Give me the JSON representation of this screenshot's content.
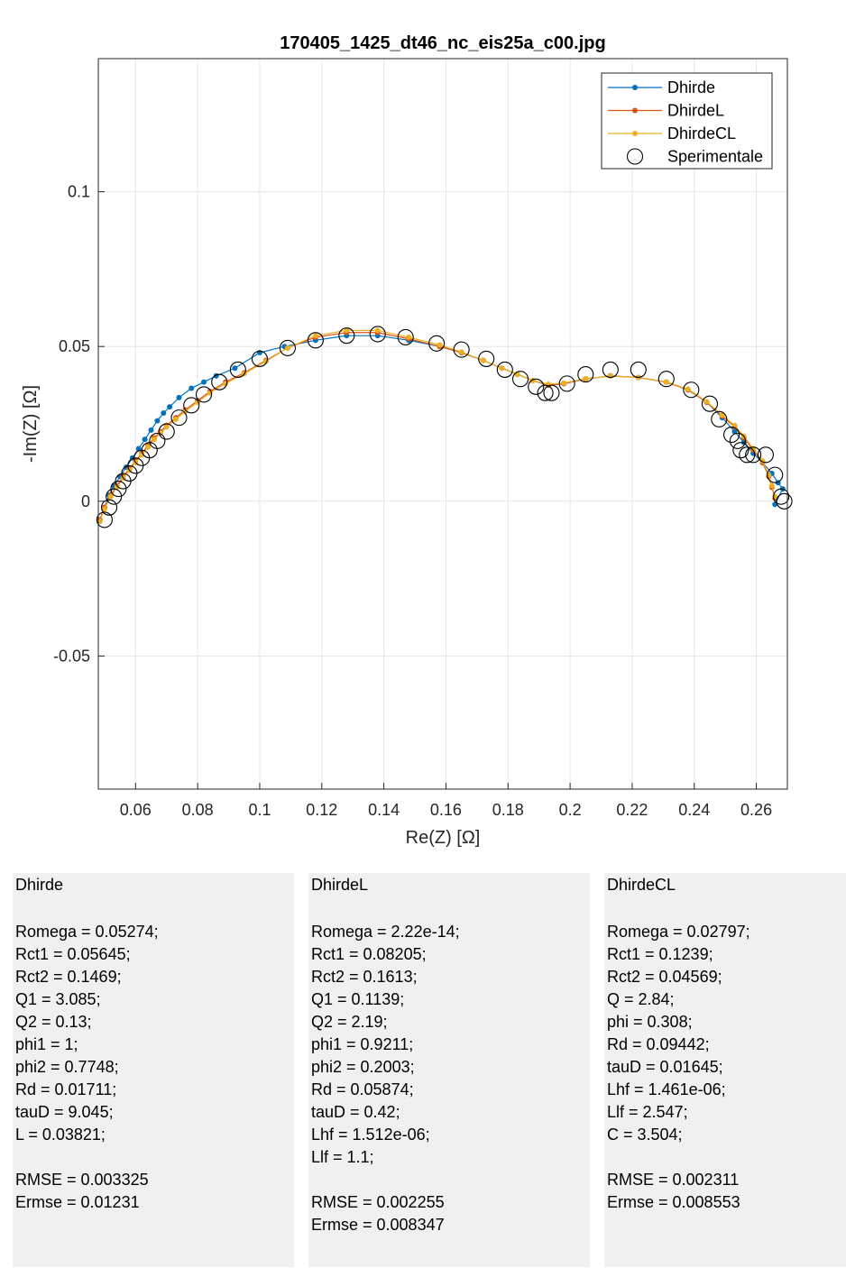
{
  "chart_data": {
    "type": "scatter",
    "title": "170405_1425_dt46_nc_eis25a_c00.jpg",
    "xlabel": "Re(Z) [Ω]",
    "ylabel": "-Im(Z) [Ω]",
    "xlim": [
      0.048,
      0.27
    ],
    "ylim": [
      -0.093,
      0.143
    ],
    "xticks": [
      0.06,
      0.08,
      0.1,
      0.12,
      0.14,
      0.16,
      0.18,
      0.2,
      0.22,
      0.24,
      0.26
    ],
    "xtick_labels": [
      "0.06",
      "0.08",
      "0.1",
      "0.12",
      "0.14",
      "0.16",
      "0.18",
      "0.2",
      "0.22",
      "0.24",
      "0.26"
    ],
    "yticks": [
      -0.05,
      0,
      0.05,
      0.1
    ],
    "ytick_labels": [
      "-0.05",
      "0",
      "0.05",
      "0.1"
    ],
    "grid": true,
    "legend_position": "top-right",
    "colors": {
      "Dhirde": "#0072bd",
      "DhirdeL": "#d95319",
      "DhirdeCL": "#edb120",
      "Sperimentale": "#000000"
    },
    "series": [
      {
        "name": "Dhirde",
        "kind": "line-markers",
        "x": [
          0.0485,
          0.05,
          0.0515,
          0.053,
          0.055,
          0.057,
          0.059,
          0.061,
          0.063,
          0.065,
          0.067,
          0.069,
          0.071,
          0.074,
          0.078,
          0.082,
          0.086,
          0.092,
          0.1,
          0.108,
          0.118,
          0.128,
          0.138,
          0.148,
          0.158,
          0.165,
          0.172,
          0.178,
          0.183,
          0.188,
          0.193,
          0.198,
          0.205,
          0.213,
          0.222,
          0.231,
          0.238,
          0.244,
          0.249,
          0.253,
          0.256,
          0.259,
          0.262,
          0.265,
          0.267,
          0.2685,
          0.266
        ],
        "y": [
          -0.006,
          -0.002,
          0.002,
          0.005,
          0.008,
          0.011,
          0.014,
          0.017,
          0.02,
          0.023,
          0.026,
          0.0285,
          0.0305,
          0.0335,
          0.0365,
          0.0385,
          0.0405,
          0.043,
          0.048,
          0.05,
          0.052,
          0.0535,
          0.0535,
          0.052,
          0.05,
          0.048,
          0.0455,
          0.043,
          0.041,
          0.039,
          0.0375,
          0.038,
          0.0395,
          0.0405,
          0.04,
          0.0385,
          0.036,
          0.032,
          0.027,
          0.0225,
          0.019,
          0.0155,
          0.0125,
          0.009,
          0.006,
          0.004,
          -0.001
        ]
      },
      {
        "name": "DhirdeL",
        "kind": "line-markers",
        "x": [
          0.0485,
          0.05,
          0.052,
          0.054,
          0.056,
          0.058,
          0.06,
          0.062,
          0.064,
          0.066,
          0.068,
          0.07,
          0.073,
          0.076,
          0.08,
          0.084,
          0.089,
          0.095,
          0.102,
          0.109,
          0.118,
          0.128,
          0.138,
          0.148,
          0.158,
          0.165,
          0.172,
          0.178,
          0.183,
          0.188,
          0.193,
          0.198,
          0.205,
          0.213,
          0.222,
          0.231,
          0.238,
          0.244,
          0.249,
          0.253,
          0.256,
          0.259,
          0.262,
          0.264,
          0.265,
          0.266
        ],
        "y": [
          -0.006,
          -0.002,
          0.002,
          0.005,
          0.008,
          0.0105,
          0.013,
          0.0155,
          0.018,
          0.0205,
          0.0225,
          0.0245,
          0.027,
          0.0295,
          0.0325,
          0.0355,
          0.0385,
          0.0415,
          0.0455,
          0.0495,
          0.053,
          0.0545,
          0.0545,
          0.0525,
          0.05,
          0.048,
          0.0455,
          0.043,
          0.041,
          0.039,
          0.0375,
          0.038,
          0.0395,
          0.0405,
          0.04,
          0.0385,
          0.036,
          0.032,
          0.0275,
          0.024,
          0.0205,
          0.0165,
          0.0125,
          0.008,
          0.0045,
          0.001
        ]
      },
      {
        "name": "DhirdeCL",
        "kind": "line-markers",
        "x": [
          0.0485,
          0.05,
          0.052,
          0.054,
          0.056,
          0.058,
          0.06,
          0.062,
          0.064,
          0.066,
          0.068,
          0.07,
          0.073,
          0.076,
          0.08,
          0.084,
          0.089,
          0.095,
          0.102,
          0.109,
          0.118,
          0.128,
          0.138,
          0.148,
          0.158,
          0.165,
          0.172,
          0.178,
          0.183,
          0.188,
          0.193,
          0.198,
          0.205,
          0.213,
          0.222,
          0.231,
          0.238,
          0.244,
          0.249,
          0.253,
          0.256,
          0.259,
          0.262,
          0.264,
          0.265,
          0.266
        ],
        "y": [
          -0.0065,
          -0.0025,
          0.0015,
          0.0045,
          0.0075,
          0.01,
          0.0125,
          0.015,
          0.0175,
          0.02,
          0.022,
          0.024,
          0.0265,
          0.029,
          0.032,
          0.035,
          0.038,
          0.0412,
          0.0452,
          0.0495,
          0.0535,
          0.0552,
          0.0552,
          0.053,
          0.0505,
          0.0482,
          0.0455,
          0.043,
          0.041,
          0.039,
          0.0378,
          0.0382,
          0.0396,
          0.0404,
          0.04,
          0.0386,
          0.0362,
          0.0322,
          0.0278,
          0.0245,
          0.021,
          0.017,
          0.013,
          0.0085,
          0.005,
          0.0015
        ]
      },
      {
        "name": "Sperimentale",
        "kind": "markers",
        "x": [
          0.05,
          0.0515,
          0.053,
          0.0545,
          0.056,
          0.058,
          0.06,
          0.062,
          0.0645,
          0.067,
          0.07,
          0.074,
          0.078,
          0.082,
          0.087,
          0.093,
          0.1,
          0.109,
          0.118,
          0.128,
          0.138,
          0.147,
          0.157,
          0.165,
          0.173,
          0.179,
          0.184,
          0.189,
          0.192,
          0.194,
          0.199,
          0.205,
          0.213,
          0.222,
          0.231,
          0.239,
          0.245,
          0.248,
          0.252,
          0.254,
          0.255,
          0.257,
          0.259,
          0.263,
          0.266,
          0.268,
          0.269
        ],
        "y": [
          -0.006,
          -0.002,
          0.0015,
          0.004,
          0.0065,
          0.009,
          0.0115,
          0.014,
          0.0165,
          0.0195,
          0.0225,
          0.027,
          0.031,
          0.0345,
          0.0385,
          0.0425,
          0.046,
          0.0495,
          0.052,
          0.0535,
          0.054,
          0.053,
          0.051,
          0.049,
          0.046,
          0.0425,
          0.0395,
          0.037,
          0.035,
          0.035,
          0.038,
          0.041,
          0.0425,
          0.0425,
          0.0395,
          0.036,
          0.0315,
          0.0265,
          0.0215,
          0.0195,
          0.0165,
          0.015,
          0.015,
          0.015,
          0.0085,
          0.0015,
          0.0
        ]
      }
    ]
  },
  "panels": [
    {
      "title": "Dhirde",
      "lines": [
        "Romega = 0.05274;",
        "Rct1 = 0.05645;",
        "Rct2 = 0.1469;",
        "Q1 = 3.085;",
        "Q2 = 0.13;",
        "phi1 = 1;",
        "phi2 = 0.7748;",
        "Rd = 0.01711;",
        "tauD = 9.045;",
        "L = 0.03821;",
        "",
        "RMSE = 0.003325",
        "Ermse = 0.01231"
      ]
    },
    {
      "title": "DhirdeL",
      "lines": [
        "Romega = 2.22e-14;",
        "Rct1 = 0.08205;",
        "Rct2 = 0.1613;",
        "Q1 = 0.1139;",
        "Q2 = 2.19;",
        "phi1 = 0.9211;",
        "phi2 = 0.2003;",
        "Rd = 0.05874;",
        "tauD = 0.42;",
        "Lhf = 1.512e-06;",
        "Llf = 1.1;",
        "",
        "RMSE = 0.002255",
        "Ermse = 0.008347"
      ]
    },
    {
      "title": "DhirdeCL",
      "lines": [
        "Romega = 0.02797;",
        "Rct1 = 0.1239;",
        "Rct2 = 0.04569;",
        "Q = 2.84;",
        "phi = 0.308;",
        "Rd = 0.09442;",
        "tauD = 0.01645;",
        "Lhf = 1.461e-06;",
        "Llf = 2.547;",
        "C = 3.504;",
        "",
        "RMSE = 0.002311",
        "Ermse = 0.008553"
      ]
    }
  ]
}
